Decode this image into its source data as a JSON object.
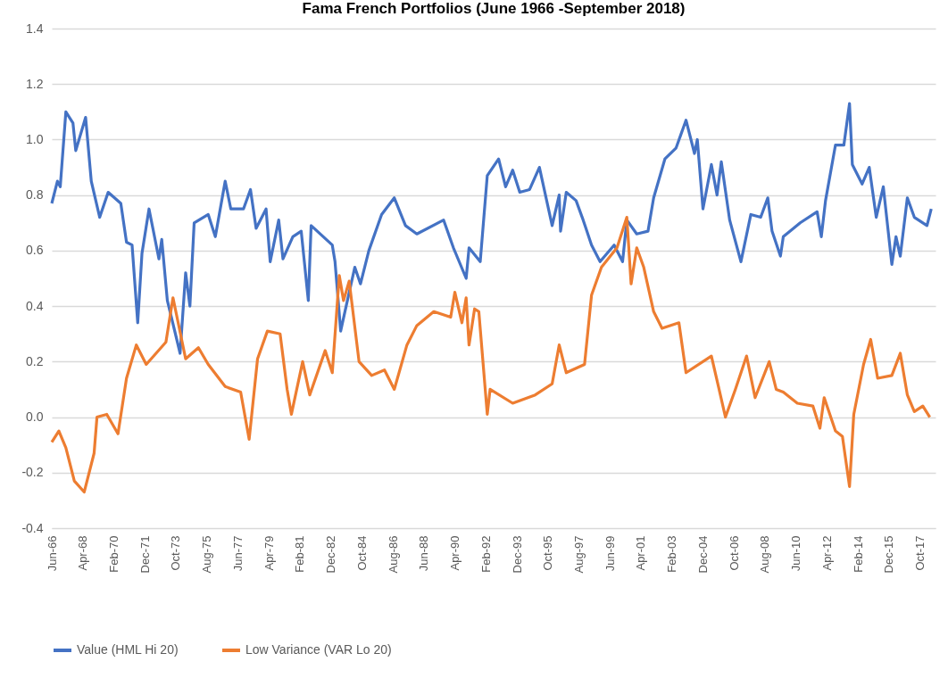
{
  "chart_data": {
    "type": "line",
    "title": "Fama French Portfolios (June 1966 -September 2018)",
    "xlim": [
      "1966-06",
      "2018-09"
    ],
    "xticks": [
      {
        "value": "1966-06",
        "label": "Jun-66"
      },
      {
        "value": "1968-04",
        "label": "Apr-68"
      },
      {
        "value": "1970-02",
        "label": "Feb-70"
      },
      {
        "value": "1971-12",
        "label": "Dec-71"
      },
      {
        "value": "1973-10",
        "label": "Oct-73"
      },
      {
        "value": "1975-08",
        "label": "Aug-75"
      },
      {
        "value": "1977-06",
        "label": "Jun-77"
      },
      {
        "value": "1979-04",
        "label": "Apr-79"
      },
      {
        "value": "1981-02",
        "label": "Feb-81"
      },
      {
        "value": "1982-12",
        "label": "Dec-82"
      },
      {
        "value": "1984-10",
        "label": "Oct-84"
      },
      {
        "value": "1986-08",
        "label": "Aug-86"
      },
      {
        "value": "1988-06",
        "label": "Jun-88"
      },
      {
        "value": "1990-04",
        "label": "Apr-90"
      },
      {
        "value": "1992-02",
        "label": "Feb-92"
      },
      {
        "value": "1993-12",
        "label": "Dec-93"
      },
      {
        "value": "1995-10",
        "label": "Oct-95"
      },
      {
        "value": "1997-08",
        "label": "Aug-97"
      },
      {
        "value": "1999-06",
        "label": "Jun-99"
      },
      {
        "value": "2001-04",
        "label": "Apr-01"
      },
      {
        "value": "2003-02",
        "label": "Feb-03"
      },
      {
        "value": "2004-12",
        "label": "Dec-04"
      },
      {
        "value": "2006-10",
        "label": "Oct-06"
      },
      {
        "value": "2008-08",
        "label": "Aug-08"
      },
      {
        "value": "2010-06",
        "label": "Jun-10"
      },
      {
        "value": "2012-04",
        "label": "Apr-12"
      },
      {
        "value": "2014-02",
        "label": "Feb-14"
      },
      {
        "value": "2015-12",
        "label": "Dec-15"
      },
      {
        "value": "2017-10",
        "label": "Oct-17"
      }
    ],
    "ylim": [
      -0.4,
      1.4
    ],
    "yticks": [
      {
        "value": -0.4,
        "label": "-0.4"
      },
      {
        "value": -0.2,
        "label": "-0.2"
      },
      {
        "value": 0,
        "label": "0.0"
      },
      {
        "value": 0.2,
        "label": "0.2"
      },
      {
        "value": 0.4,
        "label": "0.4"
      },
      {
        "value": 0.6,
        "label": "0.6"
      },
      {
        "value": 0.8,
        "label": "0.8"
      },
      {
        "value": 1,
        "label": "1.0"
      },
      {
        "value": 1.2,
        "label": "1.2"
      },
      {
        "value": 1.4,
        "label": "1.4"
      }
    ],
    "grid": "y",
    "legend": "bottom",
    "series": [
      {
        "name": "Value (HML Hi 20)",
        "color": "#4472c4",
        "x": [
          "1966-06",
          "1966-10",
          "1966-12",
          "1967-04",
          "1967-09",
          "1967-11",
          "1968-06",
          "1968-10",
          "1969-04",
          "1969-10",
          "1970-07",
          "1970-11",
          "1971-03",
          "1971-07",
          "1971-10",
          "1972-03",
          "1972-10",
          "1972-12",
          "1973-04",
          "1974-01",
          "1974-05",
          "1974-08",
          "1974-11",
          "1975-09",
          "1976-02",
          "1976-09",
          "1977-01",
          "1977-10",
          "1978-03",
          "1978-07",
          "1979-02",
          "1979-05",
          "1979-11",
          "1980-02",
          "1980-09",
          "1981-03",
          "1981-08",
          "1981-10",
          "1983-01",
          "1983-03",
          "1983-07",
          "1983-10",
          "1984-05",
          "1984-09",
          "1985-03",
          "1985-12",
          "1986-09",
          "1987-05",
          "1988-01",
          "1989-08",
          "1990-03",
          "1990-12",
          "1991-02",
          "1991-10",
          "1992-03",
          "1992-11",
          "1993-04",
          "1993-09",
          "1994-02",
          "1994-09",
          "1995-04",
          "1996-01",
          "1996-06",
          "1996-07",
          "1996-11",
          "1997-06",
          "1997-11",
          "1998-05",
          "1998-11",
          "1999-09",
          "2000-03",
          "2000-06",
          "2001-01",
          "2001-09",
          "2002-01",
          "2002-09",
          "2003-05",
          "2003-12",
          "2004-06",
          "2004-08",
          "2004-12",
          "2005-06",
          "2005-10",
          "2006-01",
          "2006-07",
          "2007-03",
          "2007-10",
          "2008-05",
          "2008-10",
          "2009-01",
          "2009-07",
          "2009-09",
          "2010-09",
          "2011-09",
          "2011-12",
          "2012-03",
          "2012-10",
          "2013-04",
          "2013-08",
          "2013-10",
          "2014-05",
          "2014-10",
          "2015-03",
          "2015-08",
          "2016-02",
          "2016-05",
          "2016-08",
          "2017-01",
          "2017-06",
          "2018-03",
          "2018-06"
        ],
        "values": [
          0.77,
          0.85,
          0.83,
          1.1,
          1.06,
          0.96,
          1.08,
          0.85,
          0.72,
          0.81,
          0.77,
          0.63,
          0.62,
          0.34,
          0.59,
          0.75,
          0.57,
          0.64,
          0.42,
          0.23,
          0.52,
          0.4,
          0.7,
          0.73,
          0.65,
          0.85,
          0.75,
          0.75,
          0.82,
          0.68,
          0.75,
          0.56,
          0.71,
          0.57,
          0.65,
          0.67,
          0.42,
          0.69,
          0.62,
          0.56,
          0.31,
          0.38,
          0.54,
          0.48,
          0.6,
          0.73,
          0.79,
          0.69,
          0.66,
          0.71,
          0.61,
          0.5,
          0.61,
          0.56,
          0.87,
          0.93,
          0.83,
          0.89,
          0.81,
          0.82,
          0.9,
          0.69,
          0.8,
          0.67,
          0.81,
          0.78,
          0.71,
          0.62,
          0.56,
          0.62,
          0.56,
          0.71,
          0.66,
          0.67,
          0.79,
          0.93,
          0.97,
          1.07,
          0.95,
          1.0,
          0.75,
          0.91,
          0.8,
          0.92,
          0.71,
          0.56,
          0.73,
          0.72,
          0.79,
          0.67,
          0.58,
          0.65,
          0.7,
          0.74,
          0.65,
          0.78,
          0.98,
          0.98,
          1.13,
          0.91,
          0.84,
          0.9,
          0.72,
          0.83,
          0.55,
          0.65,
          0.58,
          0.79,
          0.72,
          0.69,
          0.75
        ]
      },
      {
        "name": "Low Variance (VAR Lo 20)",
        "color": "#ed7d31",
        "x": [
          "1966-06",
          "1966-11",
          "1967-04",
          "1967-10",
          "1968-05",
          "1968-12",
          "1969-02",
          "1969-09",
          "1970-05",
          "1970-11",
          "1971-06",
          "1972-01",
          "1972-08",
          "1973-03",
          "1973-08",
          "1974-05",
          "1975-02",
          "1975-09",
          "1976-09",
          "1977-08",
          "1978-02",
          "1978-08",
          "1979-03",
          "1979-12",
          "1980-05",
          "1980-08",
          "1981-04",
          "1981-09",
          "1982-08",
          "1983-01",
          "1983-06",
          "1983-09",
          "1984-01",
          "1984-08",
          "1985-05",
          "1986-02",
          "1986-09",
          "1987-06",
          "1988-01",
          "1989-01",
          "1990-01",
          "1990-04",
          "1990-09",
          "1990-12",
          "1991-02",
          "1991-06",
          "1991-09",
          "1992-03",
          "1992-05",
          "1993-09",
          "1995-01",
          "1996-01",
          "1996-06",
          "1996-11",
          "1997-12",
          "1998-05",
          "1998-12",
          "1999-11",
          "2000-06",
          "2000-09",
          "2001-01",
          "2001-06",
          "2002-01",
          "2002-07",
          "2003-07",
          "2003-12",
          "2005-06",
          "2005-11",
          "2006-04",
          "2006-11",
          "2007-07",
          "2008-01",
          "2008-11",
          "2009-04",
          "2009-09",
          "2010-07",
          "2011-06",
          "2011-11",
          "2012-02",
          "2012-10",
          "2013-03",
          "2013-08",
          "2013-11",
          "2014-06",
          "2014-11",
          "2015-04",
          "2016-02",
          "2016-08",
          "2017-01",
          "2017-06",
          "2017-12",
          "2018-05"
        ],
        "values": [
          -0.09,
          -0.05,
          -0.11,
          -0.23,
          -0.27,
          -0.13,
          0.0,
          0.01,
          -0.06,
          0.14,
          0.26,
          0.19,
          0.23,
          0.27,
          0.43,
          0.21,
          0.25,
          0.19,
          0.11,
          0.09,
          -0.08,
          0.21,
          0.31,
          0.3,
          0.1,
          0.01,
          0.2,
          0.08,
          0.24,
          0.16,
          0.51,
          0.42,
          0.49,
          0.2,
          0.15,
          0.17,
          0.1,
          0.26,
          0.33,
          0.38,
          0.36,
          0.45,
          0.34,
          0.43,
          0.26,
          0.39,
          0.38,
          0.01,
          0.1,
          0.05,
          0.08,
          0.12,
          0.26,
          0.16,
          0.19,
          0.44,
          0.54,
          0.61,
          0.72,
          0.48,
          0.61,
          0.54,
          0.38,
          0.32,
          0.34,
          0.16,
          0.22,
          0.11,
          0.0,
          0.1,
          0.22,
          0.07,
          0.2,
          0.1,
          0.09,
          0.05,
          0.04,
          -0.04,
          0.07,
          -0.05,
          -0.07,
          -0.25,
          0.01,
          0.19,
          0.28,
          0.14,
          0.15,
          0.23,
          0.08,
          0.02,
          0.04,
          0.0
        ]
      }
    ]
  }
}
